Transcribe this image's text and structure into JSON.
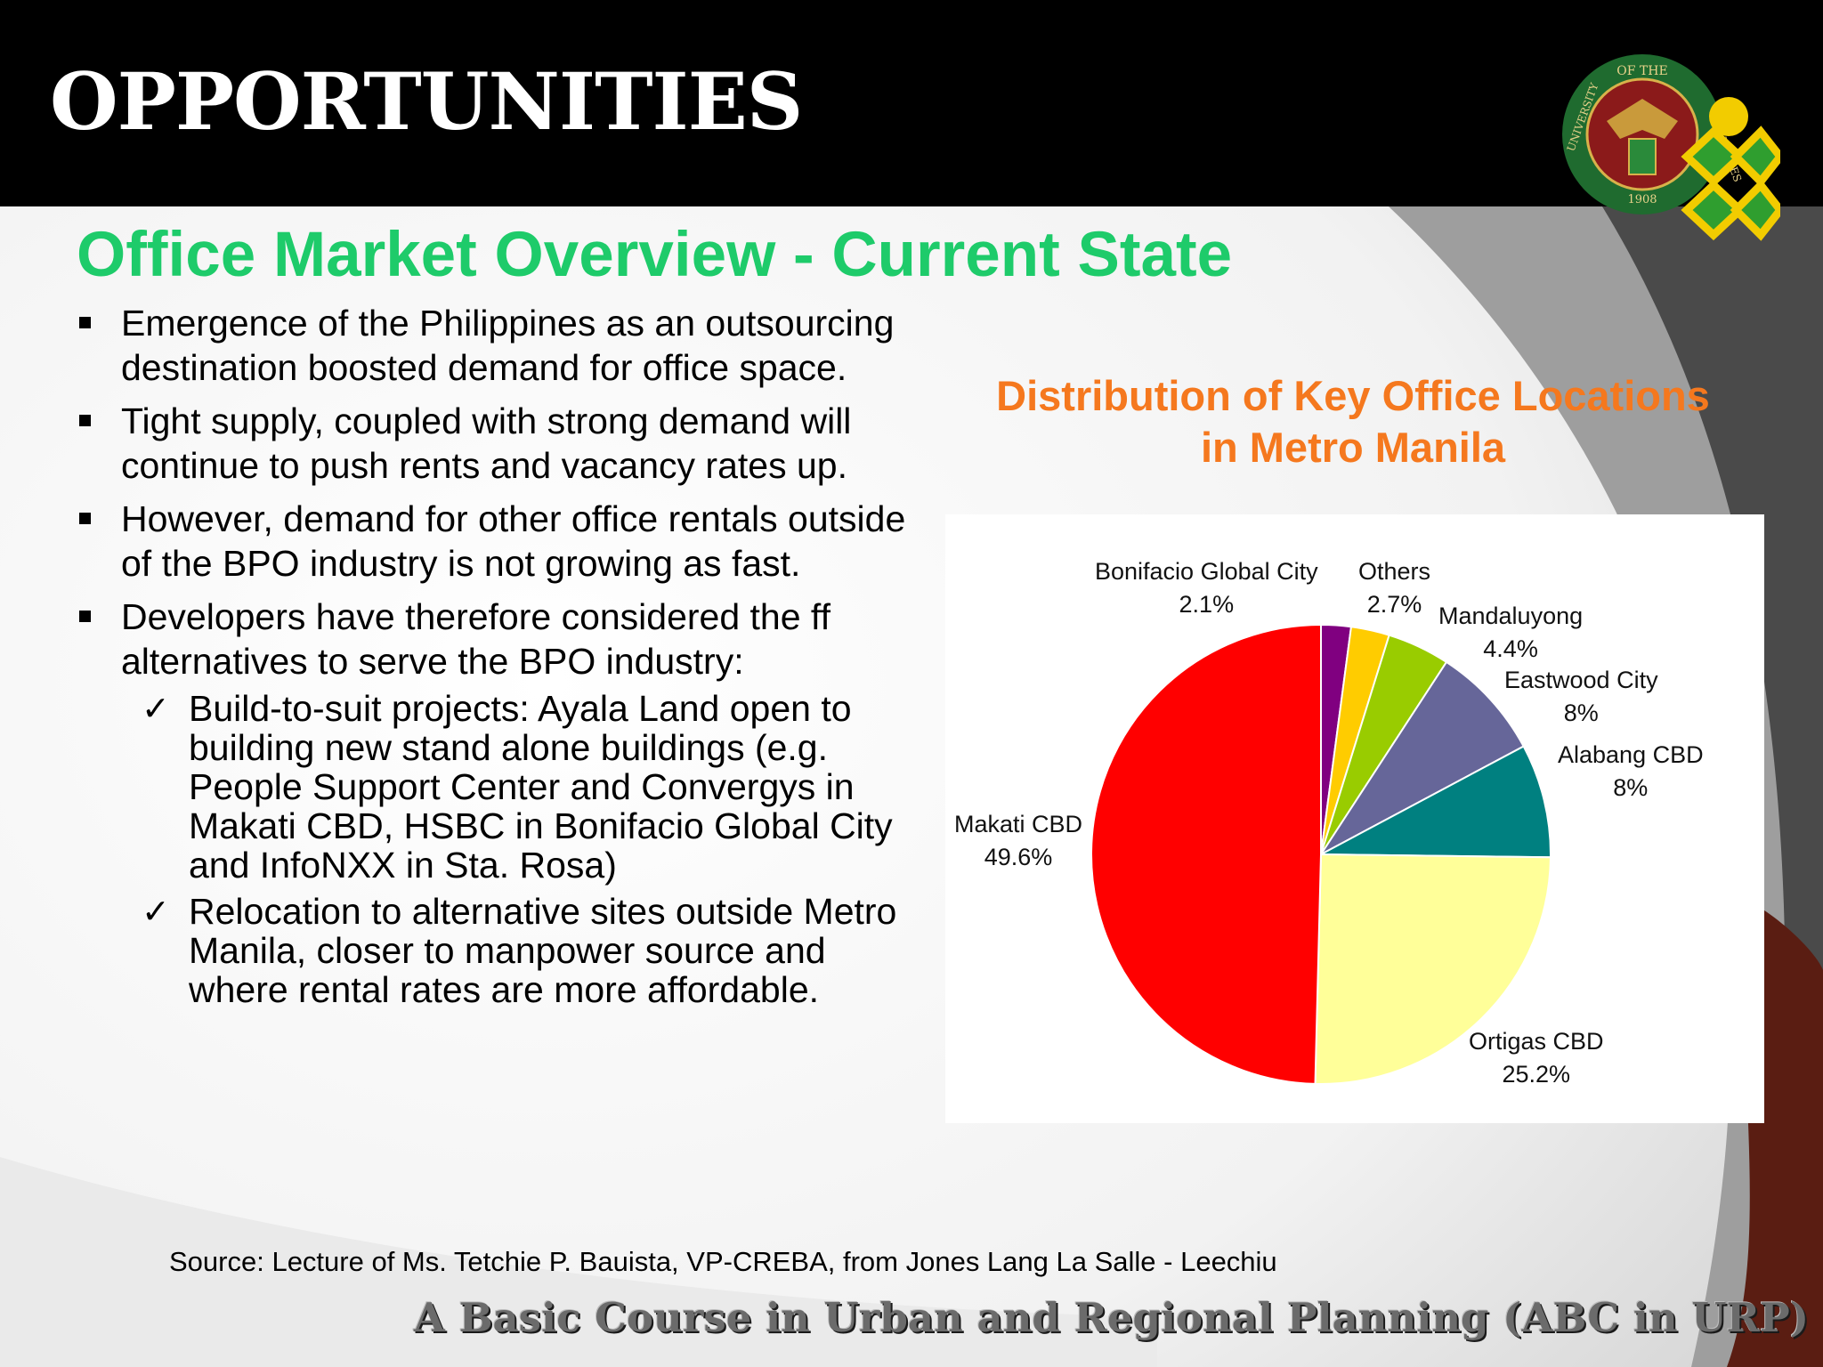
{
  "header": {
    "title": "OPPORTUNITIES"
  },
  "subtitle": "Office Market Overview - Current State",
  "bullets": [
    {
      "text": "Emergence of the Philippines as an outsourcing destination boosted demand for office space."
    },
    {
      "text": "Tight supply, coupled with strong demand will continue to push rents and vacancy rates up."
    },
    {
      "text": "However, demand for other office rentals outside of the BPO industry is not growing as fast."
    },
    {
      "text": "Developers have therefore considered the ff alternatives to serve the BPO industry:",
      "subitems": [
        "Build-to-suit projects: Ayala Land open to building new stand alone buildings (e.g. People Support Center and Convergys in Makati CBD, HSBC in Bonifacio Global City and InfoNXX in Sta. Rosa)",
        "Relocation to alternative sites outside Metro Manila, closer to manpower source and where rental rates are more affordable."
      ]
    }
  ],
  "check_glyph": "✓",
  "chart_data": {
    "type": "pie",
    "title_lines": [
      "Distribution of Key Office Locations",
      "in Metro Manila"
    ],
    "slices": [
      {
        "label": "Bonifacio Global City",
        "value": 2.1,
        "display": "2.1%",
        "color": "#800080"
      },
      {
        "label": "Others",
        "value": 2.7,
        "display": "2.7%",
        "color": "#ffcc00"
      },
      {
        "label": "Mandaluyong",
        "value": 4.4,
        "display": "4.4%",
        "color": "#99cc00"
      },
      {
        "label": "Eastwood City",
        "value": 8,
        "display": "8%",
        "color": "#666699"
      },
      {
        "label": "Alabang CBD",
        "value": 8,
        "display": "8%",
        "color": "#008080"
      },
      {
        "label": "Ortigas CBD",
        "value": 25.2,
        "display": "25.2%",
        "color": "#ffff99"
      },
      {
        "label": "Makati CBD",
        "value": 49.6,
        "display": "49.6%",
        "color": "#ff0000"
      }
    ]
  },
  "source": "Source: Lecture of  Ms. Tetchie P. Bauista, VP-CREBA, from Jones Lang La Salle - Leechiu",
  "footer": "A Basic Course in Urban and Regional Planning (ABC in URP)",
  "logo": {
    "ring_text_top": "OF THE",
    "ring_text_left": "UNIVERSITY",
    "ring_text_right": "PHILIPPINES",
    "year": "1908"
  },
  "colors": {
    "subtitle": "#1ecb6a",
    "chart_title": "#f5781e"
  }
}
